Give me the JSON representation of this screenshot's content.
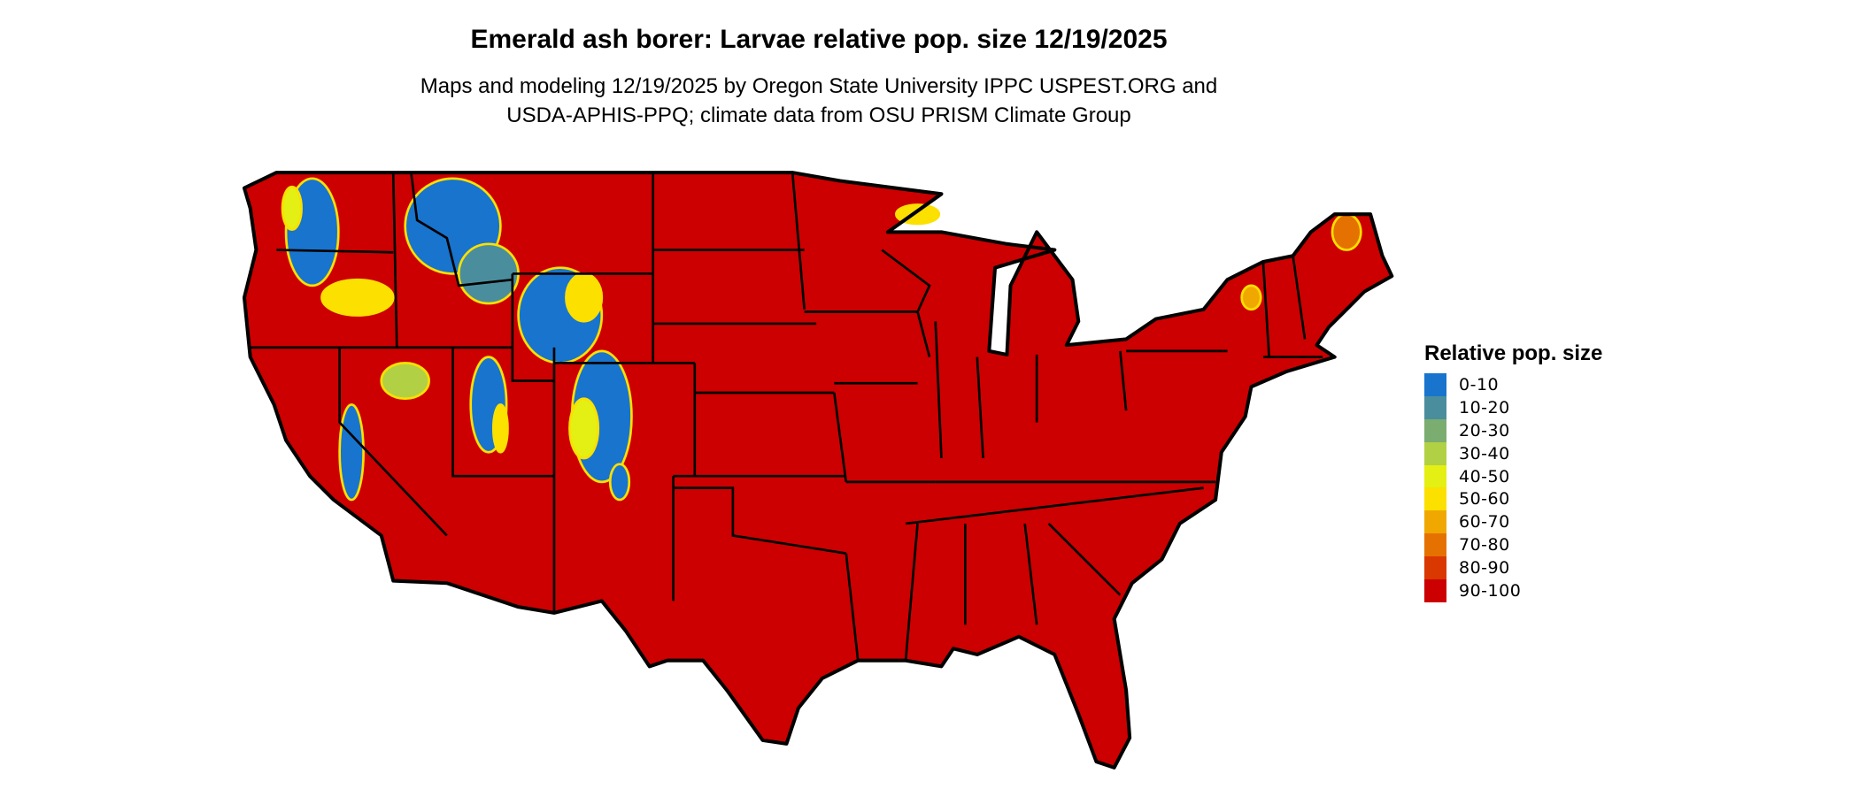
{
  "chart_data": {
    "type": "heatmap",
    "title": "Emerald ash borer: Larvae relative pop. size 12/19/2025",
    "subtitle_lines": [
      "Maps and modeling 12/19/2025 by Oregon State University IPPC USPEST.ORG and",
      "USDA-APHIS-PPQ; climate data from OSU PRISM Climate Group"
    ],
    "region": "Contiguous United States",
    "legend": {
      "title": "Relative pop. size",
      "placement": "right",
      "categories": [
        {
          "label": "0-10",
          "color": "#1874cd"
        },
        {
          "label": "10-20",
          "color": "#4a8e9e"
        },
        {
          "label": "20-30",
          "color": "#7bac70"
        },
        {
          "label": "30-40",
          "color": "#b2d043"
        },
        {
          "label": "40-50",
          "color": "#e4ef14"
        },
        {
          "label": "50-60",
          "color": "#fbe000"
        },
        {
          "label": "60-70",
          "color": "#f0a800"
        },
        {
          "label": "70-80",
          "color": "#e57200"
        },
        {
          "label": "80-90",
          "color": "#d93800"
        },
        {
          "label": "90-100",
          "color": "#cc0000"
        }
      ]
    },
    "dominant_category": "90-100"
  }
}
